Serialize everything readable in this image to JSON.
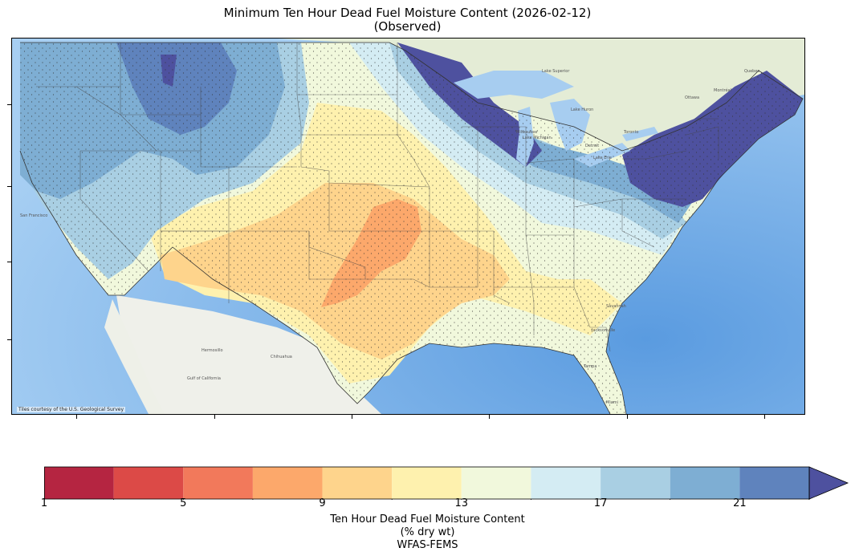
{
  "title": {
    "line1": "Minimum Ten Hour Dead Fuel Moisture Content (2026-02-12)",
    "line2": "(Observed)"
  },
  "map": {
    "attribution": "Tiles courtesy of the U.S. Geological Survey",
    "place_labels": [
      "Chihuahua",
      "Hermosillo",
      "Gulf of California",
      "Jacksonville",
      "Savannah",
      "Lake Superior",
      "Lake Michigan",
      "Lake Huron",
      "Lake Erie",
      "Toronto",
      "Ottawa",
      "Montréal",
      "Quebec",
      "San Francisco",
      "Milwaukee",
      "Detroit",
      "Tampa",
      "Miami"
    ]
  },
  "colorbar": {
    "tick_labels": [
      "1",
      "5",
      "9",
      "13",
      "17",
      "21"
    ],
    "tick_values": [
      1,
      5,
      9,
      13,
      17,
      21
    ],
    "min": 1,
    "max": 23,
    "extend": "max",
    "bins": [
      {
        "from": 1,
        "to": 3,
        "color": "#b52541"
      },
      {
        "from": 3,
        "to": 5,
        "color": "#dc4a47"
      },
      {
        "from": 5,
        "to": 7,
        "color": "#f2795b"
      },
      {
        "from": 7,
        "to": 9,
        "color": "#fca86b"
      },
      {
        "from": 9,
        "to": 11,
        "color": "#fed48c"
      },
      {
        "from": 11,
        "to": 13,
        "color": "#fef1ae"
      },
      {
        "from": 13,
        "to": 15,
        "color": "#f1f8dc"
      },
      {
        "from": 15,
        "to": 17,
        "color": "#d4ecf3"
      },
      {
        "from": 17,
        "to": 19,
        "color": "#a9cfe3"
      },
      {
        "from": 19,
        "to": 21,
        "color": "#7eaed3"
      },
      {
        "from": 21,
        "to": 23,
        "color": "#5f83bd"
      }
    ],
    "over_color": "#4e519f",
    "label_line1": "Ten Hour Dead Fuel Moisture Content",
    "label_line2": "(% dry wt)",
    "label_line3": "WFAS-FEMS"
  },
  "colors": {
    "ocean": "#7fb3e6",
    "land_mexico": "#eef0ea",
    "land_canada": "#e6eddc",
    "lakes": "#a7cdf0"
  }
}
